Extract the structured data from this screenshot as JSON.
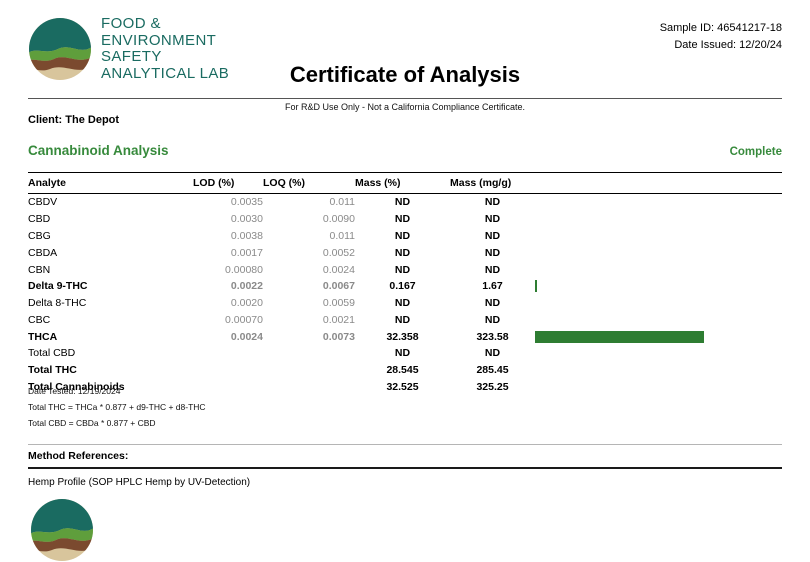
{
  "meta": {
    "sample_id": "Sample ID: 46541217-18",
    "date_issued": "Date Issued: 12/20/24"
  },
  "logo": {
    "line1": "FOOD &",
    "line2": "ENVIRONMENT",
    "line3": "SAFETY",
    "line4": "ANALYTICAL LAB"
  },
  "title": "Certificate of Analysis",
  "disclaimer": "For R&D Use Only - Not a California Compliance Certificate.",
  "client_line": "Client: The Depot",
  "section": {
    "title": "Cannabinoid Analysis",
    "status": "Complete"
  },
  "table": {
    "columns": [
      "Analyte",
      "LOD (%)",
      "LOQ (%)",
      "Mass (%)",
      "Mass (mg/g)"
    ],
    "bar_color": "#2e7d32",
    "bar_max": 33,
    "rows": [
      {
        "analyte": "CBDV",
        "lod": "0.0035",
        "loq": "0.011",
        "mass_pct": "ND",
        "mass_mgg": "ND",
        "bold": false,
        "bar": null
      },
      {
        "analyte": "CBD",
        "lod": "0.0030",
        "loq": "0.0090",
        "mass_pct": "ND",
        "mass_mgg": "ND",
        "bold": false,
        "bar": null
      },
      {
        "analyte": "CBG",
        "lod": "0.0038",
        "loq": "0.011",
        "mass_pct": "ND",
        "mass_mgg": "ND",
        "bold": false,
        "bar": null
      },
      {
        "analyte": "CBDA",
        "lod": "0.0017",
        "loq": "0.0052",
        "mass_pct": "ND",
        "mass_mgg": "ND",
        "bold": false,
        "bar": null
      },
      {
        "analyte": "CBN",
        "lod": "0.00080",
        "loq": "0.0024",
        "mass_pct": "ND",
        "mass_mgg": "ND",
        "bold": false,
        "bar": null
      },
      {
        "analyte": "Delta 9-THC",
        "lod": "0.0022",
        "loq": "0.0067",
        "mass_pct": "0.167",
        "mass_mgg": "1.67",
        "bold": true,
        "bar": 0.167
      },
      {
        "analyte": "Delta 8-THC",
        "lod": "0.0020",
        "loq": "0.0059",
        "mass_pct": "ND",
        "mass_mgg": "ND",
        "bold": false,
        "bar": null
      },
      {
        "analyte": "CBC",
        "lod": "0.00070",
        "loq": "0.0021",
        "mass_pct": "ND",
        "mass_mgg": "ND",
        "bold": false,
        "bar": null
      },
      {
        "analyte": "THCA",
        "lod": "0.0024",
        "loq": "0.0073",
        "mass_pct": "32.358",
        "mass_mgg": "323.58",
        "bold": true,
        "bar": 32.358
      },
      {
        "analyte": "Total CBD",
        "lod": "",
        "loq": "",
        "mass_pct": "ND",
        "mass_mgg": "ND",
        "bold": false,
        "bar": null
      },
      {
        "analyte": "Total THC",
        "lod": "",
        "loq": "",
        "mass_pct": "28.545",
        "mass_mgg": "285.45",
        "bold": true,
        "bar": null
      },
      {
        "analyte": "Total Cannabinoids",
        "lod": "",
        "loq": "",
        "mass_pct": "32.525",
        "mass_mgg": "325.25",
        "bold": true,
        "bar": null
      }
    ]
  },
  "footnotes": {
    "date_tested": "Date Tested: 12/19/2024",
    "total_thc_formula": "Total THC = THCa * 0.877 + d9-THC + d8-THC",
    "total_cbd_formula": "Total CBD = CBDa * 0.877 + CBD"
  },
  "method": {
    "header": "Method References:",
    "reference": "Hemp Profile (SOP HPLC Hemp by UV-Detection)"
  },
  "colors": {
    "brand_teal": "#1a6b61",
    "accent_green": "#378a3c",
    "bar_green": "#2e7d32"
  }
}
